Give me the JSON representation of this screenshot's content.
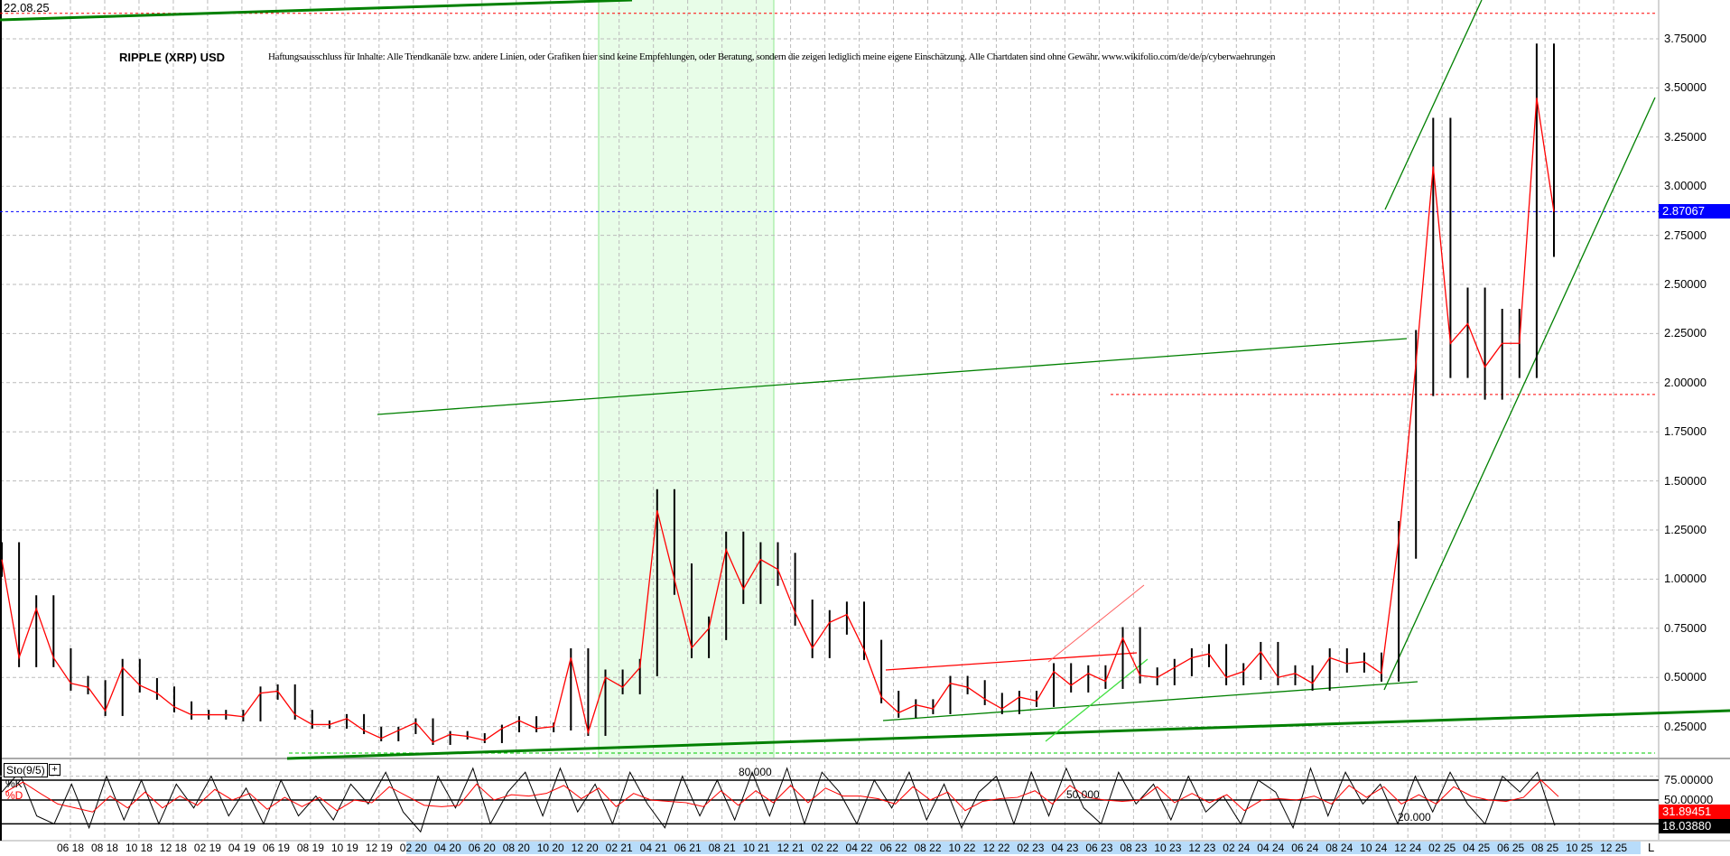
{
  "header": {
    "date": "22.08.25",
    "title": "RIPPLE (XRP) USD",
    "disclaimer": "Haftungsausschluss für Inhalte: Alle Trendkanäle bzw. andere Linien, oder Grafiken hier sind keine Empfehlungen, oder Beratung, sondern die zeigen lediglich meine eigene Einschätzung. Alle Chartdaten sind ohne Gewähr.  www.wikifolio.com/de/de/p/cyberwaehrungen"
  },
  "colors": {
    "candle": "#000000",
    "candle_alt": "#ff0000",
    "trendline": "#008000",
    "highlight": "#e8fde8",
    "last_price": "#0000ff",
    "k_badge": "#ff0000",
    "d_badge": "#000000",
    "axis_band": "#b8dcfa"
  },
  "chart_data": [
    {
      "type": "line",
      "title": "RIPPLE (XRP) USD",
      "ylim": [
        0.1,
        3.9
      ],
      "grid": true,
      "y_ticks": [
        "0.25000",
        "0.50000",
        "0.75000",
        "1.00000",
        "1.25000",
        "1.50000",
        "1.75000",
        "2.00000",
        "2.25000",
        "2.50000",
        "2.75000",
        "3.00000",
        "3.25000",
        "3.50000",
        "3.75000"
      ],
      "last_price": "2.87067",
      "start_month": "2018-02",
      "values": [
        1.1,
        0.6,
        0.85,
        0.6,
        0.47,
        0.45,
        0.33,
        0.55,
        0.46,
        0.42,
        0.35,
        0.31,
        0.31,
        0.31,
        0.3,
        0.42,
        0.43,
        0.31,
        0.26,
        0.26,
        0.29,
        0.23,
        0.19,
        0.23,
        0.27,
        0.17,
        0.21,
        0.2,
        0.18,
        0.24,
        0.28,
        0.24,
        0.25,
        0.6,
        0.22,
        0.5,
        0.45,
        0.55,
        1.35,
        1.0,
        0.65,
        0.75,
        1.15,
        0.95,
        1.1,
        1.05,
        0.83,
        0.65,
        0.78,
        0.82,
        0.64,
        0.4,
        0.32,
        0.36,
        0.34,
        0.47,
        0.45,
        0.39,
        0.34,
        0.4,
        0.38,
        0.53,
        0.46,
        0.52,
        0.48,
        0.7,
        0.51,
        0.5,
        0.55,
        0.6,
        0.62,
        0.5,
        0.53,
        0.63,
        0.5,
        0.52,
        0.47,
        0.6,
        0.57,
        0.58,
        0.52,
        1.2,
        2.1,
        3.1,
        2.2,
        2.3,
        2.08,
        2.2,
        2.2,
        3.45,
        2.87
      ],
      "levels": {
        "upper_dashed": 3.88,
        "mid_dashed": 1.94,
        "low_dashed": 0.12
      },
      "highlight_period": [
        "2020-12",
        "2021-12"
      ]
    },
    {
      "type": "line",
      "title": "Sto(9/5)",
      "series_names": [
        "%K",
        "%D"
      ],
      "ylim": [
        0,
        100
      ],
      "y_ticks": [
        "75.00000",
        "50.00000"
      ],
      "level_labels": [
        "80.000",
        "50.000",
        "20.000"
      ],
      "last_k": "18.03880",
      "last_d": "31.89451",
      "k_values": [
        60,
        85,
        30,
        20,
        70,
        15,
        80,
        25,
        75,
        20,
        70,
        40,
        80,
        30,
        65,
        20,
        75,
        30,
        55,
        25,
        70,
        45,
        85,
        35,
        10,
        80,
        40,
        90,
        20,
        60,
        85,
        30,
        90,
        35,
        70,
        20,
        85,
        45,
        15,
        80,
        30,
        75,
        25,
        85,
        30,
        90,
        20,
        85,
        60,
        20,
        75,
        40,
        85,
        25,
        70,
        15,
        60,
        80,
        20,
        85,
        30,
        90,
        40,
        20,
        85,
        45,
        70,
        25,
        80,
        35,
        55,
        20,
        75,
        60,
        15,
        90,
        30,
        85,
        45,
        70,
        20,
        80,
        35,
        85,
        45,
        20,
        80,
        60,
        85,
        18
      ]
    }
  ],
  "x_axis": {
    "labels": [
      "06 18",
      "08 18",
      "10 18",
      "12 18",
      "02 19",
      "04 19",
      "06 19",
      "08 19",
      "10 19",
      "12 19",
      "02 20",
      "04 20",
      "06 20",
      "08 20",
      "10 20",
      "12 20",
      "02 21",
      "04 21",
      "06 21",
      "08 21",
      "10 21",
      "12 21",
      "02 22",
      "04 22",
      "06 22",
      "08 22",
      "10 22",
      "12 22",
      "02 23",
      "04 23",
      "06 23",
      "08 23",
      "10 23",
      "12 23",
      "02 24",
      "04 24",
      "06 24",
      "08 24",
      "10 24",
      "12 24",
      "02 25",
      "04 25",
      "06 25",
      "08 25",
      "10 25",
      "12 25"
    ],
    "end_button": "L"
  }
}
